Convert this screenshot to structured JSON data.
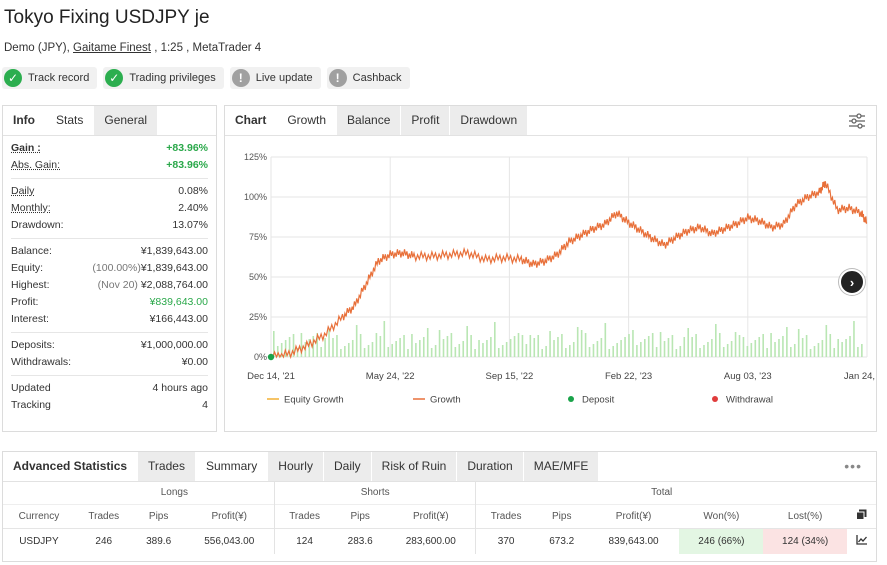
{
  "header": {
    "title": "Tokyo Fixing USDJPY je",
    "subtitle_prefix": "Demo (JPY), ",
    "broker": "Gaitame Finest",
    "subtitle_suffix": " , 1:25 , MetaTrader 4"
  },
  "badges": [
    {
      "label": "Track record",
      "icon": "check-icon",
      "status": "verified"
    },
    {
      "label": "Trading privileges",
      "icon": "check-icon",
      "status": "verified"
    },
    {
      "label": "Live update",
      "icon": "exclamation-icon",
      "status": "unverified"
    },
    {
      "label": "Cashback",
      "icon": "exclamation-icon",
      "status": "unverified"
    }
  ],
  "info": {
    "tabs": [
      "Info",
      "Stats",
      "General"
    ],
    "gain_label": "Gain :",
    "gain": "+83.96%",
    "abs_gain_label": "Abs. Gain:",
    "abs_gain": "+83.96%",
    "daily_label": "Daily",
    "daily": "0.08%",
    "monthly_label": "Monthly:",
    "monthly": "2.40%",
    "drawdown_label": "Drawdown:",
    "drawdown": "13.07%",
    "balance_label": "Balance:",
    "balance": "¥1,839,643.00",
    "equity_label": "Equity:",
    "equity_pct": "(100.00%)",
    "equity": "¥1,839,643.00",
    "highest_label": "Highest:",
    "highest_date": "(Nov 20)",
    "highest": "¥2,088,764.00",
    "profit_label": "Profit:",
    "profit": "¥839,643.00",
    "interest_label": "Interest:",
    "interest": "¥166,443.00",
    "deposits_label": "Deposits:",
    "deposits": "¥1,000,000.00",
    "withdrawals_label": "Withdrawals:",
    "withdrawals": "¥0.00",
    "updated_label": "Updated",
    "updated": "4 hours ago",
    "tracking_label": "Tracking",
    "tracking": "4"
  },
  "chart_tabs": [
    "Chart",
    "Growth",
    "Balance",
    "Profit",
    "Drawdown"
  ],
  "chart_data": {
    "type": "line",
    "x_ticks": [
      "Dec 14, '21",
      "May 24, '22",
      "Sep 15, '22",
      "Feb 22, '23",
      "Aug 03, '23",
      "Jan 24, '24"
    ],
    "y_ticks": [
      "0%",
      "25%",
      "50%",
      "75%",
      "100%",
      "125%"
    ],
    "ylim": [
      0,
      125
    ],
    "legend": [
      "Equity Growth",
      "Growth",
      "Deposit",
      "Withdrawal"
    ],
    "legend_placement": "bottom",
    "grid": true,
    "colors": {
      "growth": "#e8703a",
      "equity": "#f2b134",
      "deposit": "#1aa34a",
      "withdrawal": "#e03c3c",
      "bars": "#b9e6b3"
    },
    "series": [
      {
        "name": "Growth",
        "x": [
          0,
          0.03,
          0.06,
          0.09,
          0.12,
          0.14,
          0.16,
          0.18,
          0.2,
          0.22,
          0.24,
          0.27,
          0.3,
          0.33,
          0.36,
          0.39,
          0.42,
          0.44,
          0.46,
          0.48,
          0.5,
          0.52,
          0.54,
          0.56,
          0.58,
          0.6,
          0.62,
          0.64,
          0.66,
          0.68,
          0.7,
          0.72,
          0.74,
          0.76,
          0.78,
          0.8,
          0.82,
          0.84,
          0.86,
          0.88,
          0.9,
          0.92,
          0.93,
          0.95,
          0.97,
          0.99,
          1.0
        ],
        "y": [
          0,
          2,
          7,
          14,
          25,
          32,
          46,
          60,
          64,
          65,
          63,
          63,
          64,
          65,
          61,
          62,
          61,
          58,
          60,
          64,
          72,
          76,
          80,
          83,
          90,
          84,
          79,
          74,
          70,
          75,
          79,
          81,
          77,
          80,
          83,
          87,
          85,
          81,
          83,
          95,
          100,
          103,
          109,
          92,
          93,
          90,
          84
        ]
      }
    ],
    "deposits": [
      {
        "x": 0,
        "y": 0
      }
    ],
    "withdrawals": []
  },
  "adv": {
    "title": "Advanced Statistics",
    "tabs": [
      "Trades",
      "Summary",
      "Hourly",
      "Daily",
      "Risk of Ruin",
      "Duration",
      "MAE/MFE"
    ],
    "groups": [
      "Longs",
      "Shorts",
      "Total"
    ],
    "headers": {
      "currency": "Currency",
      "longs": [
        "Trades",
        "Pips",
        "Profit(¥)"
      ],
      "shorts": [
        "Trades",
        "Pips",
        "Profit(¥)"
      ],
      "total": [
        "Trades",
        "Pips",
        "Profit(¥)",
        "Won(%)",
        "Lost(%)"
      ]
    },
    "row": {
      "currency": "USDJPY",
      "l_trades": "246",
      "l_pips": "389.6",
      "l_profit": "556,043.00",
      "s_trades": "124",
      "s_pips": "283.6",
      "s_profit": "283,600.00",
      "t_trades": "370",
      "t_pips": "673.2",
      "t_profit": "839,643.00",
      "won": "246 (66%)",
      "lost": "124 (34%)"
    }
  }
}
